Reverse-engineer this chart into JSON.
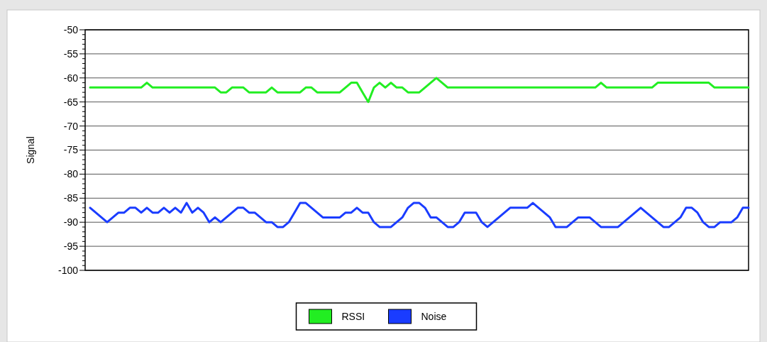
{
  "chart_data": {
    "type": "line",
    "ylabel": "Signal",
    "categories": [
      null,
      null,
      null,
      null,
      null,
      null,
      null,
      null,
      null,
      null,
      null,
      null,
      null,
      null,
      null,
      null,
      null,
      null,
      null,
      null,
      null,
      null,
      null,
      null,
      null,
      null,
      null,
      null,
      null,
      null,
      null,
      null,
      null,
      null,
      null,
      null,
      null,
      null,
      null,
      null,
      null,
      null,
      null,
      null,
      null,
      null,
      null,
      null,
      null,
      null,
      null,
      null,
      null,
      null,
      null,
      null,
      null,
      null,
      null,
      null,
      null,
      null,
      null,
      null,
      null,
      null,
      null,
      null,
      null,
      null,
      null,
      null,
      null,
      null,
      null,
      null,
      null,
      null,
      null,
      null,
      null,
      null,
      null,
      null,
      null,
      null,
      null,
      null,
      null,
      null,
      null,
      null,
      null,
      null,
      null,
      null,
      null,
      null,
      null,
      null,
      null,
      null,
      null,
      null,
      null,
      null,
      null,
      null,
      null,
      null,
      null,
      null,
      null,
      null,
      null,
      null,
      null
    ],
    "series": [
      {
        "name": "RSSI",
        "color": "#22ee22",
        "values": [
          -62,
          -62,
          -62,
          -62,
          -62,
          -62,
          -62,
          -62,
          -62,
          -62,
          -61,
          -62,
          -62,
          -62,
          -62,
          -62,
          -62,
          -62,
          -62,
          -62,
          -62,
          -62,
          -62,
          -63,
          -63,
          -62,
          -62,
          -62,
          -63,
          -63,
          -63,
          -63,
          -62,
          -63,
          -63,
          -63,
          -63,
          -63,
          -62,
          -62,
          -63,
          -63,
          -63,
          -63,
          -63,
          -62,
          -61,
          -61,
          -63,
          -65,
          -62,
          -61,
          -62,
          -61,
          -62,
          -62,
          -63,
          -63,
          -63,
          -62,
          -61,
          -60,
          -61,
          -62,
          -62,
          -62,
          -62,
          -62,
          -62,
          -62,
          -62,
          -62,
          -62,
          -62,
          -62,
          -62,
          -62,
          -62,
          -62,
          -62,
          -62,
          -62,
          -62,
          -62,
          -62,
          -62,
          -62,
          -62,
          -62,
          -62,
          -61,
          -62,
          -62,
          -62,
          -62,
          -62,
          -62,
          -62,
          -62,
          -62,
          -61,
          -61,
          -61,
          -61,
          -61,
          -61,
          -61,
          -61,
          -61,
          -61,
          -62,
          -62,
          -62,
          -62,
          -62,
          -62,
          -62
        ]
      },
      {
        "name": "Noise",
        "color": "#1a3cff",
        "values": [
          -87,
          -88,
          -89,
          -90,
          -89,
          -88,
          -88,
          -87,
          -87,
          -88,
          -87,
          -88,
          -88,
          -87,
          -88,
          -87,
          -88,
          -86,
          -88,
          -87,
          -88,
          -90,
          -89,
          -90,
          -89,
          -88,
          -87,
          -87,
          -88,
          -88,
          -89,
          -90,
          -90,
          -91,
          -91,
          -90,
          -88,
          -86,
          -86,
          -87,
          -88,
          -89,
          -89,
          -89,
          -89,
          -88,
          -88,
          -87,
          -88,
          -88,
          -90,
          -91,
          -91,
          -91,
          -90,
          -89,
          -87,
          -86,
          -86,
          -87,
          -89,
          -89,
          -90,
          -91,
          -91,
          -90,
          -88,
          -88,
          -88,
          -90,
          -91,
          -90,
          -89,
          -88,
          -87,
          -87,
          -87,
          -87,
          -86,
          -87,
          -88,
          -89,
          -91,
          -91,
          -91,
          -90,
          -89,
          -89,
          -89,
          -90,
          -91,
          -91,
          -91,
          -91,
          -90,
          -89,
          -88,
          -87,
          -88,
          -89,
          -90,
          -91,
          -91,
          -90,
          -89,
          -87,
          -87,
          -88,
          -90,
          -91,
          -91,
          -90,
          -90,
          -90,
          -89,
          -87,
          -87
        ]
      }
    ],
    "ylim": [
      -100,
      -50
    ],
    "yticks": [
      -100,
      {
        "value": -99,
        "label": null
      },
      {
        "value": -98,
        "label": null
      },
      {
        "value": -97,
        "label": null
      },
      {
        "value": -96,
        "label": null
      },
      -95,
      {
        "value": -94,
        "label": null
      },
      {
        "value": -93,
        "label": null
      },
      {
        "value": -92,
        "label": null
      },
      {
        "value": -91,
        "label": null
      },
      -90,
      {
        "value": -89,
        "label": null
      },
      {
        "value": -88,
        "label": null
      },
      {
        "value": -87,
        "label": null
      },
      {
        "value": -86,
        "label": null
      },
      -85,
      {
        "value": -84,
        "label": null
      },
      {
        "value": -83,
        "label": null
      },
      {
        "value": -82,
        "label": null
      },
      {
        "value": -81,
        "label": null
      },
      -80,
      {
        "value": -79,
        "label": null
      },
      {
        "value": -78,
        "label": null
      },
      {
        "value": -77,
        "label": null
      },
      {
        "value": -76,
        "label": null
      },
      -75,
      {
        "value": -74,
        "label": null
      },
      {
        "value": -73,
        "label": null
      },
      {
        "value": -72,
        "label": null
      },
      {
        "value": -71,
        "label": null
      },
      -70,
      {
        "value": -69,
        "label": null
      },
      {
        "value": -68,
        "label": null
      },
      {
        "value": -67,
        "label": null
      },
      {
        "value": -66,
        "label": null
      },
      -65,
      {
        "value": -64,
        "label": null
      },
      {
        "value": -63,
        "label": null
      },
      {
        "value": -62,
        "label": null
      },
      {
        "value": -61,
        "label": null
      },
      -60,
      {
        "value": -59,
        "label": null
      },
      {
        "value": -58,
        "label": null
      },
      {
        "value": -57,
        "label": null
      },
      {
        "value": -56,
        "label": null
      },
      -55,
      {
        "value": -54,
        "label": null
      },
      {
        "value": -53,
        "label": null
      },
      {
        "value": -52,
        "label": null
      },
      {
        "value": -51,
        "label": null
      },
      -50
    ],
    "grid": "y",
    "legend": "bottom",
    "marker": "none",
    "line_style": "solid"
  }
}
